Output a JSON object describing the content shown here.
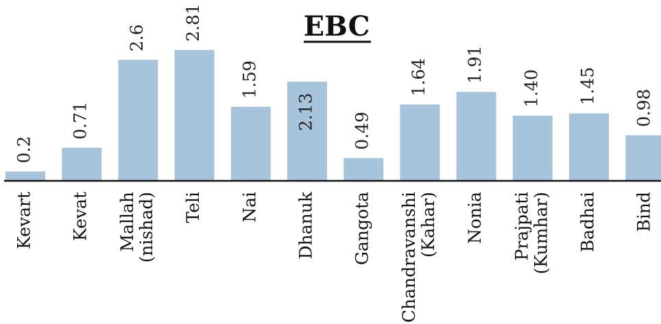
{
  "chart_data": {
    "type": "bar",
    "title": "EBC",
    "xlabel": "",
    "ylabel": "",
    "ylim": [
      0,
      3.0
    ],
    "grid": false,
    "legend": "none",
    "bar_color": "#a8c4dc",
    "categories": [
      [
        "Kevart"
      ],
      [
        "Kevat"
      ],
      [
        "Mallah",
        "(nishad)"
      ],
      [
        "Teli"
      ],
      [
        "Nai"
      ],
      [
        "Dhanuk"
      ],
      [
        "Gangota"
      ],
      [
        "Chandravanshi",
        "(Kahar)"
      ],
      [
        "Nonia"
      ],
      [
        "Prajpati",
        "(Kumhar)"
      ],
      [
        "Badhai"
      ],
      [
        "Bind"
      ]
    ],
    "values": [
      0.2,
      0.71,
      2.6,
      2.81,
      1.59,
      2.13,
      0.49,
      1.64,
      1.91,
      1.4,
      1.45,
      0.98
    ],
    "value_labels": [
      "0.2",
      "0.71",
      "2.6",
      "2.81",
      "1.59",
      "2.13",
      "0.49",
      "1.64",
      "1.91",
      "1.40",
      "1.45",
      "0.98"
    ]
  }
}
